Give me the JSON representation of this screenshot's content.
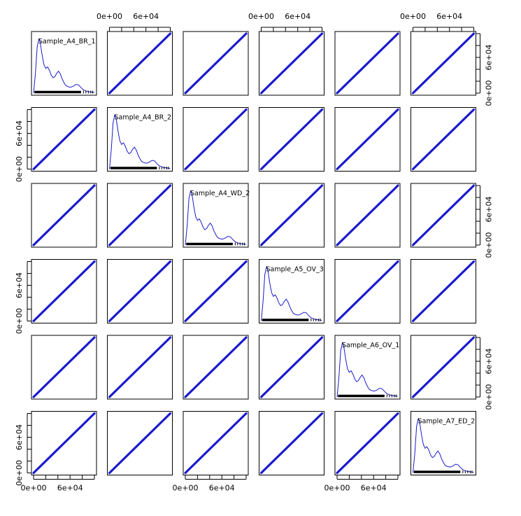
{
  "chart_data": {
    "type": "scatter-matrix",
    "variables": [
      "Sample_A4_BR_1",
      "Sample_A4_BR_2",
      "Sample_A4_WD_2",
      "Sample_A5_OV_3",
      "Sample_A6_OV_1",
      "Sample_A7_ED_2"
    ],
    "axis_range": [
      0,
      100000
    ],
    "tick_labels": [
      "0e+00",
      "6e+04"
    ],
    "off_diagonal": {
      "kind": "scatter",
      "points": [
        [
          0,
          0
        ],
        [
          100000,
          100000
        ]
      ]
    },
    "diagonal": {
      "kind": "density",
      "density_x": [
        0,
        3000,
        6000,
        9000,
        11000,
        14000,
        17000,
        20000,
        23000,
        26000,
        29000,
        32000,
        35000,
        38000,
        41000,
        44000,
        47000,
        50000,
        53000,
        56000,
        59000,
        62000,
        66000,
        70000,
        74000,
        78000,
        82000,
        86000,
        90000,
        94000,
        98000,
        100000
      ],
      "density_y": [
        0.0,
        0.35,
        0.85,
        1.0,
        0.92,
        0.7,
        0.52,
        0.45,
        0.48,
        0.42,
        0.33,
        0.28,
        0.3,
        0.36,
        0.4,
        0.35,
        0.26,
        0.19,
        0.14,
        0.12,
        0.11,
        0.11,
        0.13,
        0.16,
        0.15,
        0.1,
        0.06,
        0.04,
        0.03,
        0.02,
        0.015,
        0.01
      ]
    },
    "series_color": "#1a1acd",
    "frame_color": "#000000"
  }
}
